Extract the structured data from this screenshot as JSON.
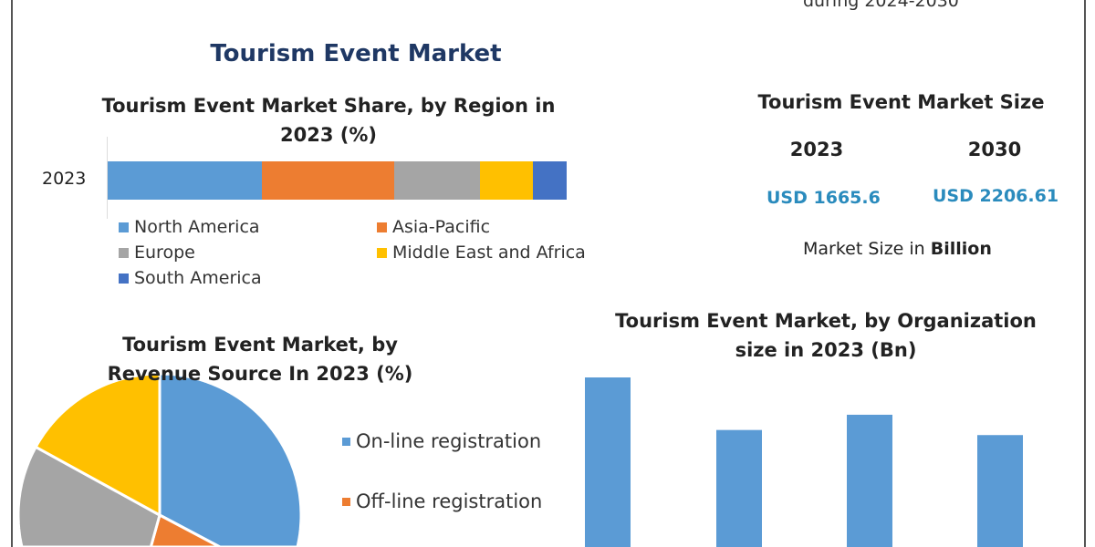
{
  "header": {
    "subtitle_fragment": "during 2024-2030",
    "title": "Tourism Event Market"
  },
  "market_size": {
    "title": "Tourism Event Market Size",
    "years": [
      "2023",
      "2030"
    ],
    "values": [
      "USD 1665.6",
      "USD 2206.61"
    ],
    "unit_prefix": "Market Size in ",
    "unit_bold": "Billion"
  },
  "colors": {
    "north_america": "#5b9bd5",
    "asia_pacific": "#ed7d31",
    "europe": "#a5a5a5",
    "mea": "#ffc000",
    "south_america": "#4472c4",
    "title": "#1f3864"
  },
  "chart_data": [
    {
      "type": "bar",
      "orientation": "horizontal-stacked",
      "title": "Tourism Event Market Share, by Region in 2023 (%)",
      "categories": [
        "2023"
      ],
      "series": [
        {
          "name": "North America",
          "values": [
            33.6
          ],
          "color": "#5b9bd5"
        },
        {
          "name": "Asia-Pacific",
          "values": [
            28.8
          ],
          "color": "#ed7d31"
        },
        {
          "name": "Europe",
          "values": [
            18.7
          ],
          "color": "#a5a5a5"
        },
        {
          "name": "Middle East and Africa",
          "values": [
            11.5
          ],
          "color": "#ffc000"
        },
        {
          "name": "South America",
          "values": [
            7.4
          ],
          "color": "#4472c4"
        }
      ],
      "legend": "bottom"
    },
    {
      "type": "pie",
      "title": "Tourism Event Market, by Revenue Source In 2023 (%)",
      "slices": [
        {
          "name": "On-line registration",
          "value": 43,
          "color": "#5b9bd5"
        },
        {
          "name": "Off-line registration",
          "value": 8,
          "color": "#ed7d31"
        },
        {
          "name": "",
          "value": 32,
          "color": "#a5a5a5"
        },
        {
          "name": "",
          "value": 17,
          "color": "#ffc000"
        }
      ],
      "legend": "right"
    },
    {
      "type": "bar",
      "title": "Tourism Event Market, by Organization size in 2023 (Bn)",
      "values": [
        1.0,
        0.69,
        0.78,
        0.66
      ],
      "color": "#5b9bd5"
    }
  ]
}
